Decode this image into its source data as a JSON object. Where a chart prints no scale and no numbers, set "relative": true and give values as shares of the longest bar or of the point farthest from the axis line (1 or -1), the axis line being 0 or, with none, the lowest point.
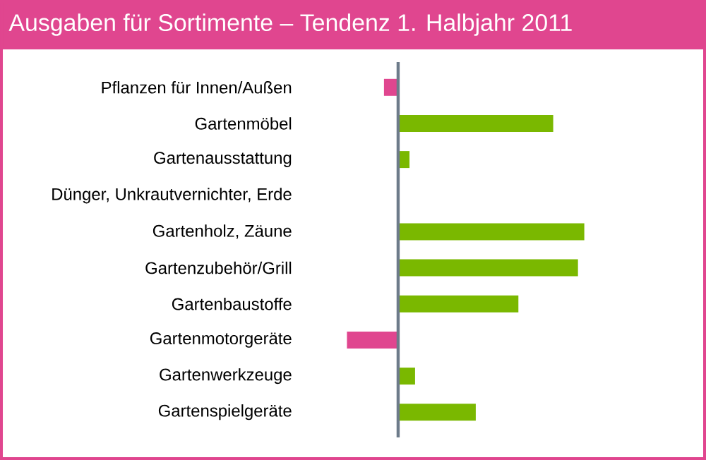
{
  "chart_data": {
    "type": "bar",
    "orientation": "horizontal",
    "relative": true,
    "title": "Ausgaben für Sortimente – Tendenz 1. Halbjahr 2011",
    "categories": [
      "Pflanzen für Innen/Außen",
      "Gartenmöbel",
      "Gartenausstattung",
      "Dünger, Unkrautvernichter, Erde",
      "Gartenholz, Zäune",
      "Gartenzubehör/Grill",
      "Gartenbaustoffe",
      "Gartenmotorgeräte",
      "Gartenwerkzeuge",
      "Gartenspielgeräte"
    ],
    "values": [
      -0.076,
      0.833,
      0.061,
      0,
      1,
      0.966,
      0.646,
      -0.275,
      0.091,
      0.417
    ],
    "colors": [
      "#e0468f",
      "#7ab800",
      "#7ab800",
      "#7ab800",
      "#7ab800",
      "#7ab800",
      "#7ab800",
      "#e0468f",
      "#7ab800",
      "#7ab800"
    ]
  }
}
